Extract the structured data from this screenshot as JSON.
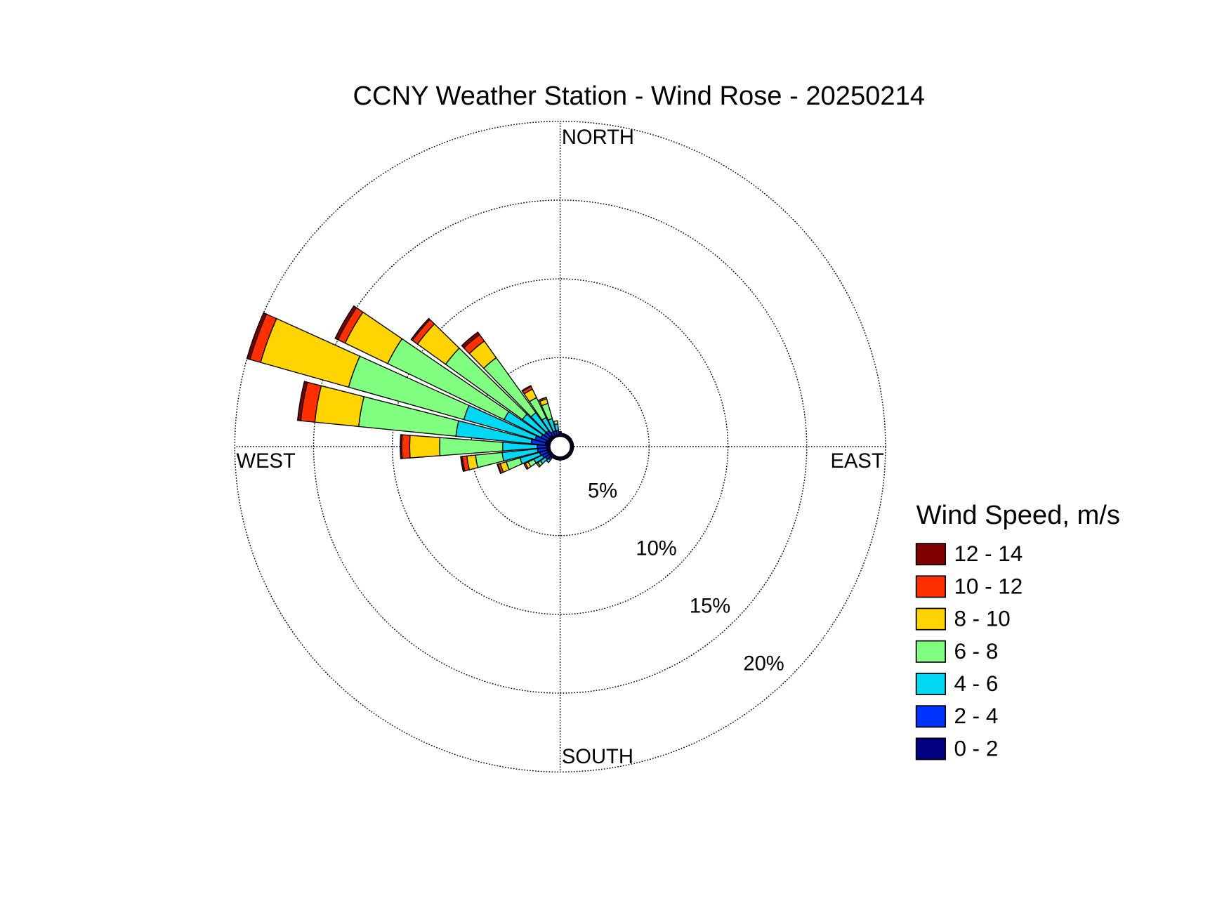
{
  "chart_data": {
    "type": "windrose",
    "title": "CCNY Weather Station - Wind Rose - 20250214",
    "legend_title": "Wind Speed, m/s",
    "x": [
      0,
      10,
      20,
      30,
      40,
      50,
      60,
      70,
      80,
      90,
      100,
      110,
      120,
      130,
      140,
      150,
      160,
      170,
      180,
      190,
      200,
      210,
      220,
      230,
      240,
      250,
      260,
      270,
      280,
      290,
      300,
      310,
      320,
      330,
      340,
      350
    ],
    "direction_labels": [
      {
        "value": 0,
        "label": "NORTH"
      },
      {
        "value": 90,
        "label": "EAST"
      },
      {
        "value": 180,
        "label": "SOUTH"
      },
      {
        "value": 270,
        "label": "WEST"
      }
    ],
    "rlim": [
      0,
      20
    ],
    "rticks": [
      {
        "value": 5,
        "label": "5%"
      },
      {
        "value": 10,
        "label": "10%"
      },
      {
        "value": 15,
        "label": "15%"
      },
      {
        "value": 20,
        "label": "20%"
      }
    ],
    "grid": true,
    "series": [
      {
        "name": "12 - 14",
        "color": "#800000",
        "values": [
          0,
          0,
          0,
          0,
          0,
          0,
          0,
          0,
          0,
          0,
          0,
          0,
          0,
          0,
          0,
          0,
          0,
          0,
          0,
          0,
          0,
          0,
          0,
          0,
          0,
          0.05,
          0.1,
          0.1,
          0.2,
          0.2,
          0.2,
          0.1,
          0.2,
          0.05,
          0,
          0
        ]
      },
      {
        "name": "10 - 12",
        "color": "#ff2f00",
        "values": [
          0,
          0,
          0,
          0,
          0,
          0,
          0,
          0,
          0,
          0,
          0,
          0,
          0,
          0,
          0,
          0,
          0,
          0,
          0,
          0,
          0,
          0,
          0,
          0,
          0.1,
          0.15,
          0.3,
          0.5,
          0.9,
          0.7,
          0.5,
          0.4,
          0.5,
          0.2,
          0.1,
          0
        ]
      },
      {
        "name": "8 - 10",
        "color": "#ffd400",
        "values": [
          0,
          0,
          0,
          0,
          0,
          0,
          0,
          0,
          0,
          0,
          0,
          0,
          0,
          0,
          0,
          0,
          0,
          0,
          0,
          0,
          0,
          0,
          0,
          0.1,
          0.2,
          0.4,
          0.55,
          1.9,
          2.8,
          5.8,
          3.0,
          2.2,
          1.3,
          0.6,
          0.3,
          0
        ]
      },
      {
        "name": "6 - 8",
        "color": "#80ff80",
        "values": [
          0,
          0,
          0,
          0,
          0,
          0,
          0,
          0,
          0,
          0,
          0,
          0,
          0,
          0,
          0,
          0,
          0,
          0,
          0,
          0,
          0,
          0,
          0,
          0.2,
          0.4,
          0.9,
          1.7,
          4.0,
          6.2,
          7.6,
          8.2,
          6.0,
          4.3,
          1.4,
          1.0,
          0.2
        ]
      },
      {
        "name": "4 - 6",
        "color": "#00d8f4",
        "values": [
          0,
          0,
          0,
          0,
          0,
          0,
          0,
          0,
          0,
          0,
          0,
          0,
          0,
          0,
          0,
          0,
          0,
          0,
          0,
          0,
          0,
          0,
          0.2,
          0.4,
          0.6,
          1.3,
          2.25,
          2.2,
          4.8,
          4.7,
          2.6,
          1.7,
          1.4,
          1.0,
          0.8,
          0.4
        ]
      },
      {
        "name": "2 - 4",
        "color": "#0033ff",
        "values": [
          0.1,
          0.05,
          0.05,
          0.05,
          0.05,
          0.05,
          0.05,
          0.05,
          0.05,
          0.05,
          0.05,
          0.05,
          0.05,
          0.05,
          0.05,
          0.05,
          0.05,
          0.05,
          0.05,
          0.05,
          0.05,
          0.05,
          0.2,
          0.3,
          0.4,
          0.5,
          0.6,
          0.6,
          0.9,
          0.7,
          0.5,
          0.4,
          0.4,
          0.3,
          0.3,
          0.3
        ]
      },
      {
        "name": "0 - 2",
        "color": "#000080",
        "values": [
          0.2,
          0.15,
          0.15,
          0.15,
          0.15,
          0.15,
          0.15,
          0.15,
          0.15,
          0.15,
          0.15,
          0.15,
          0.15,
          0.15,
          0.15,
          0.15,
          0.15,
          0.15,
          0.15,
          0.15,
          0.15,
          0.15,
          0.2,
          0.2,
          0.2,
          0.2,
          0.2,
          0.2,
          0.3,
          0.3,
          0.2,
          0.2,
          0.2,
          0.1,
          0.1,
          0.1
        ]
      }
    ]
  }
}
